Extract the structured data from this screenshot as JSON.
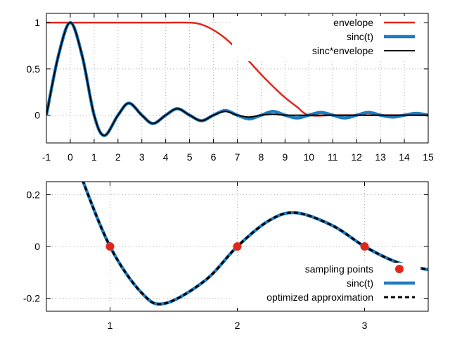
{
  "chart_data": [
    {
      "type": "line",
      "title": "",
      "xlabel": "",
      "ylabel": "",
      "xlim": [
        -1,
        15
      ],
      "ylim": [
        -0.3,
        1.1
      ],
      "x_ticks": [
        -1,
        0,
        1,
        2,
        3,
        4,
        5,
        6,
        7,
        8,
        9,
        10,
        11,
        12,
        13,
        14,
        15
      ],
      "y_ticks": [
        0,
        0.5,
        1
      ],
      "y_tick_labels": [
        "0",
        "0.5",
        "1"
      ],
      "grid": true,
      "legend_position": "top-right",
      "series": [
        {
          "name": "envelope",
          "color": "#e0281a",
          "style": "solid",
          "x": [
            -1,
            0,
            1,
            2,
            3,
            4,
            5,
            5.5,
            6,
            6.5,
            7,
            7.5,
            8,
            8.5,
            9,
            9.5,
            10,
            11,
            12,
            13,
            14,
            15
          ],
          "y": [
            1,
            1,
            1,
            1,
            1,
            1,
            1,
            0.98,
            0.92,
            0.83,
            0.71,
            0.58,
            0.44,
            0.31,
            0.19,
            0.09,
            0,
            0,
            0,
            0,
            0,
            0
          ]
        },
        {
          "name": "sinc(t)",
          "color": "#1f7bbf",
          "style": "solid",
          "x": [
            -1,
            -0.5,
            0,
            0.5,
            1,
            1.43,
            2,
            2.46,
            3,
            3.47,
            4,
            4.49,
            5,
            5.5,
            6,
            6.5,
            7,
            7.5,
            8,
            8.5,
            9,
            9.5,
            10,
            10.5,
            11,
            11.5,
            12,
            12.5,
            13,
            13.5,
            14,
            14.5,
            15
          ],
          "y": [
            0,
            0.64,
            1,
            0.64,
            0,
            -0.22,
            0,
            0.13,
            0,
            -0.09,
            0,
            0.07,
            0,
            -0.06,
            0,
            0.05,
            0,
            -0.04,
            0,
            0.04,
            0,
            -0.03,
            0,
            0.03,
            0,
            -0.03,
            0,
            0.03,
            0,
            -0.02,
            0,
            0.02,
            0
          ]
        },
        {
          "name": "sinc*envelope",
          "color": "#000000",
          "style": "solid",
          "x": [
            -1,
            -0.5,
            0,
            0.5,
            1,
            1.43,
            2,
            2.46,
            3,
            3.47,
            4,
            4.49,
            5,
            5.5,
            6,
            6.5,
            7,
            7.5,
            8,
            8.5,
            9,
            9.5,
            10,
            11,
            12,
            13,
            14,
            15
          ],
          "y": [
            0,
            0.64,
            1,
            0.64,
            0,
            -0.22,
            0,
            0.13,
            0,
            -0.09,
            0,
            0.07,
            0,
            -0.06,
            0,
            0.04,
            0,
            -0.02,
            0,
            0.01,
            0,
            0,
            0,
            0,
            0,
            0,
            0,
            0
          ]
        }
      ]
    },
    {
      "type": "line",
      "title": "",
      "xlabel": "",
      "ylabel": "",
      "xlim": [
        0.5,
        3.5
      ],
      "ylim": [
        -0.25,
        0.25
      ],
      "x_ticks": [
        1,
        2,
        3
      ],
      "y_ticks": [
        -0.2,
        0,
        0.2
      ],
      "y_tick_labels": [
        "-0.2",
        "0",
        "0.2"
      ],
      "grid": true,
      "legend_position": "bottom-right",
      "series": [
        {
          "name": "sampling points",
          "type": "scatter",
          "color": "#e0281a",
          "x": [
            1,
            2,
            3
          ],
          "y": [
            0,
            0,
            0
          ]
        },
        {
          "name": "sinc(t)",
          "color": "#1f7bbf",
          "style": "solid",
          "x": [
            0.5,
            0.75,
            1,
            1.25,
            1.43,
            1.75,
            2,
            2.25,
            2.46,
            2.75,
            3,
            3.25,
            3.5
          ],
          "y": [
            0.64,
            0.3,
            0,
            -0.18,
            -0.22,
            -0.13,
            0,
            0.1,
            0.13,
            0.08,
            0,
            -0.06,
            -0.09
          ]
        },
        {
          "name": "optimized approximation",
          "color": "#000000",
          "style": "dashed",
          "x": [
            0.5,
            0.75,
            1,
            1.25,
            1.43,
            1.75,
            2,
            2.25,
            2.46,
            2.75,
            3,
            3.25,
            3.5
          ],
          "y": [
            0.64,
            0.3,
            0,
            -0.18,
            -0.22,
            -0.13,
            0,
            0.1,
            0.13,
            0.08,
            0,
            -0.06,
            -0.09
          ]
        }
      ]
    }
  ]
}
